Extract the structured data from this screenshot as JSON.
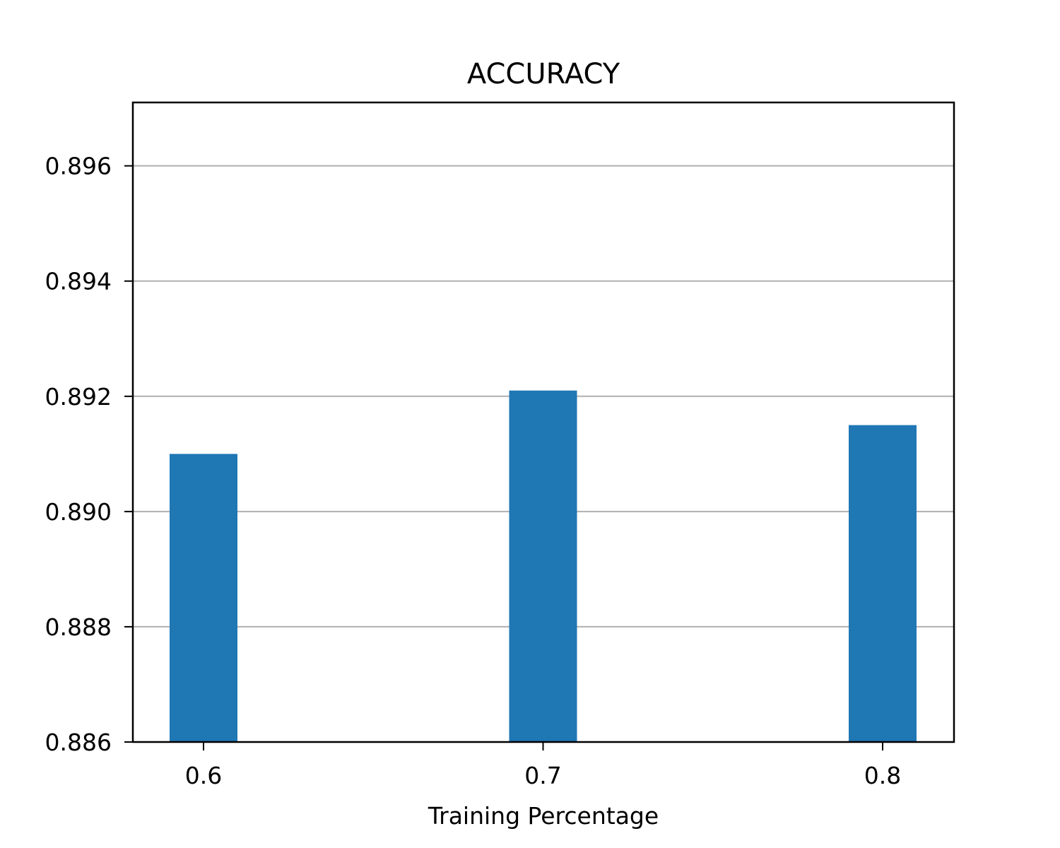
{
  "chart_data": {
    "type": "bar",
    "title": "ACCURACY",
    "xlabel": "Training Percentage",
    "ylabel": "",
    "categories": [
      "0.6",
      "0.7",
      "0.8"
    ],
    "values": [
      0.891,
      0.8921,
      0.8915
    ],
    "ylim": [
      0.886,
      0.8971
    ],
    "yticks": [
      0.886,
      0.888,
      0.89,
      0.892,
      0.894,
      0.896
    ],
    "ytick_labels": [
      "0.886",
      "0.888",
      "0.890",
      "0.892",
      "0.894",
      "0.896"
    ],
    "grid": "y",
    "bar_color": "#1f77b4",
    "grid_color": "#b0b0b0"
  }
}
